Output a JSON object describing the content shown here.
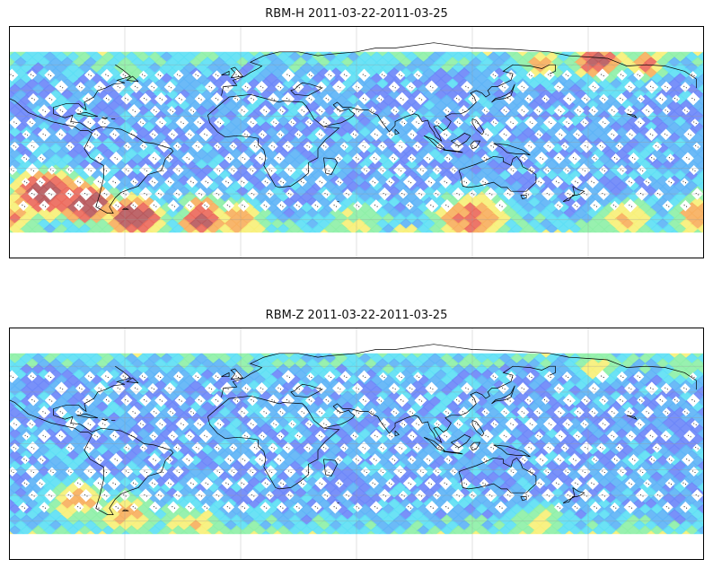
{
  "panels": [
    {
      "title": "RBM-H 2011-03-22-2011-03-25",
      "palette": [
        "#6a6af6",
        "#6e88f8",
        "#5fb4f6",
        "#5fe0f4",
        "#8ff0a8",
        "#f7f07a",
        "#f7b060",
        "#ec6a5c",
        "#b85a5e"
      ],
      "hotspots": [
        {
          "lon": -100,
          "lat": -40,
          "level": 8.2,
          "spread": 22
        },
        {
          "lon": -80,
          "lat": -48,
          "level": 8.8,
          "spread": 18
        },
        {
          "lon": -55,
          "lat": -58,
          "level": 8.5,
          "spread": 18
        },
        {
          "lon": -120,
          "lat": -58,
          "level": 6.0,
          "spread": 20
        },
        {
          "lon": -160,
          "lat": -60,
          "level": 5.5,
          "spread": 18
        },
        {
          "lon": 120,
          "lat": -60,
          "level": 6.5,
          "spread": 25
        },
        {
          "lon": 60,
          "lat": -62,
          "level": 4.5,
          "spread": 20
        },
        {
          "lon": -20,
          "lat": -50,
          "level": 6.5,
          "spread": 12
        },
        {
          "lon": -20,
          "lat": -62,
          "level": 8.0,
          "spread": 14
        },
        {
          "lon": 0,
          "lat": -62,
          "level": 6.0,
          "spread": 18
        },
        {
          "lon": -175,
          "lat": 62,
          "level": 8.0,
          "spread": 15
        },
        {
          "lon": -150,
          "lat": 60,
          "level": 7.0,
          "spread": 12
        },
        {
          "lon": 155,
          "lat": 60,
          "level": 5.5,
          "spread": 14
        },
        {
          "lon": -60,
          "lat": 55,
          "level": 4.0,
          "spread": 12
        }
      ]
    },
    {
      "title": "RBM-Z 2011-03-22-2011-03-25",
      "palette": [
        "#6a6af6",
        "#6e88f8",
        "#5fb4f6",
        "#5fe0f4",
        "#8ff0a8",
        "#f7f07a",
        "#f7b060",
        "#ec6a5c",
        "#b85a5e"
      ],
      "hotspots": [
        {
          "lon": -85,
          "lat": -45,
          "level": 5.5,
          "spread": 20
        },
        {
          "lon": -60,
          "lat": -55,
          "level": 5.5,
          "spread": 20
        },
        {
          "lon": -30,
          "lat": -60,
          "level": 4.5,
          "spread": 20
        },
        {
          "lon": -175,
          "lat": 60,
          "level": 5.0,
          "spread": 15
        },
        {
          "lon": -130,
          "lat": 60,
          "level": 4.0,
          "spread": 15
        },
        {
          "lon": 155,
          "lat": -62,
          "level": 4.5,
          "spread": 20
        },
        {
          "lon": -20,
          "lat": -62,
          "level": 5.0,
          "spread": 15
        }
      ]
    }
  ],
  "map": {
    "central_longitude": 60,
    "gridlines": true,
    "land_color": "#000000",
    "mask_color": "#ffffff"
  }
}
